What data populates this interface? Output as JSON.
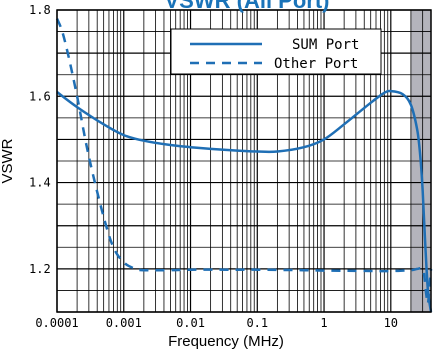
{
  "chart_data": {
    "type": "line",
    "title": "VSWR (All Port)",
    "xlabel": "Frequency (MHz)",
    "ylabel": "VSWR",
    "x_scale": "log",
    "xlim": [
      0.0001,
      40
    ],
    "ylim": [
      1.1,
      1.8
    ],
    "x_ticks": [
      "0.0001",
      "0.001",
      "0.01",
      "0.1",
      "1",
      "10"
    ],
    "y_ticks": [
      "1.2",
      "1.4",
      "1.6",
      "1.8"
    ],
    "grid": true,
    "legend_position": "top-right",
    "shaded_region_x": [
      20,
      40
    ],
    "series": [
      {
        "name": "SUM Port",
        "style": "solid",
        "color": "#1f6fb5",
        "x": [
          0.0001,
          0.0002,
          0.0005,
          0.001,
          0.002,
          0.005,
          0.01,
          0.02,
          0.05,
          0.1,
          0.2,
          0.5,
          1,
          2,
          5,
          8,
          10,
          15,
          20,
          25,
          28,
          30,
          33,
          36,
          40
        ],
        "y": [
          1.61,
          1.575,
          1.535,
          1.51,
          1.497,
          1.487,
          1.482,
          1.478,
          1.474,
          1.472,
          1.472,
          1.482,
          1.5,
          1.535,
          1.585,
          1.608,
          1.612,
          1.605,
          1.58,
          1.52,
          1.45,
          1.38,
          1.25,
          1.15,
          1.1
        ]
      },
      {
        "name": "Other Port",
        "style": "dashed",
        "color": "#1f6fb5",
        "x": [
          0.0001,
          0.00012,
          0.00015,
          0.0002,
          0.0003,
          0.0005,
          0.0007,
          0.001,
          0.0015,
          0.002,
          0.005,
          0.01,
          0.05,
          0.1,
          0.5,
          1,
          5,
          10,
          20,
          25,
          30,
          32,
          34,
          36,
          38,
          40
        ],
        "y": [
          1.78,
          1.75,
          1.69,
          1.6,
          1.46,
          1.32,
          1.25,
          1.215,
          1.2,
          1.197,
          1.197,
          1.198,
          1.198,
          1.198,
          1.197,
          1.196,
          1.195,
          1.195,
          1.197,
          1.2,
          1.2,
          1.18,
          1.14,
          1.12,
          1.16,
          1.2
        ]
      }
    ]
  }
}
